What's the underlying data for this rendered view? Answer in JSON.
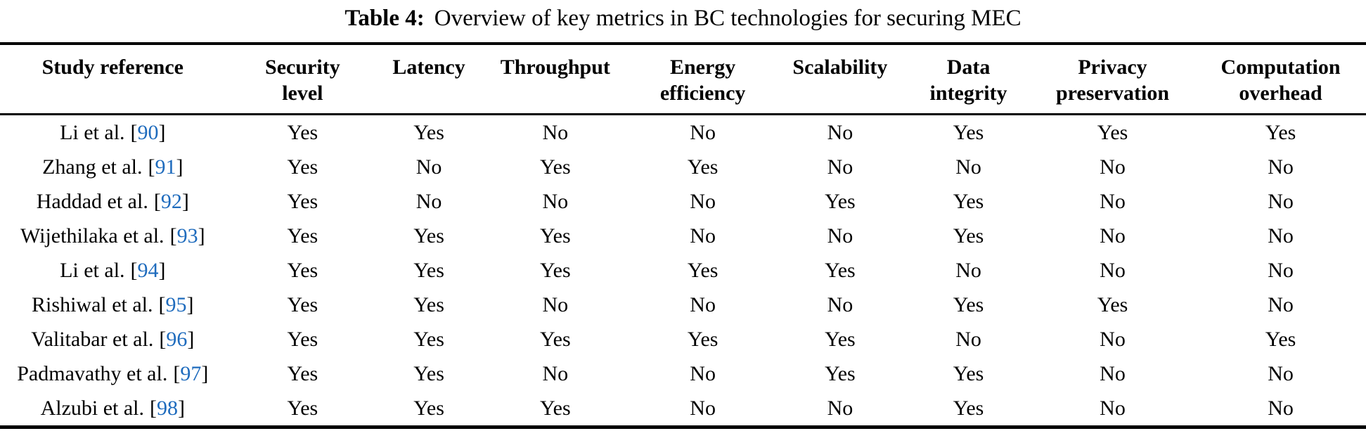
{
  "caption": {
    "label": "Table 4:",
    "text": "Overview of key metrics in BC technologies for securing MEC"
  },
  "table": {
    "citation_brackets": {
      "open": "[",
      "close": "]"
    },
    "columns": [
      {
        "id": "study-reference",
        "lines": [
          "Study reference"
        ]
      },
      {
        "id": "security-level",
        "lines": [
          "Security",
          "level"
        ]
      },
      {
        "id": "latency",
        "lines": [
          "Latency"
        ]
      },
      {
        "id": "throughput",
        "lines": [
          "Throughput"
        ]
      },
      {
        "id": "energy-efficiency",
        "lines": [
          "Energy",
          "efficiency"
        ]
      },
      {
        "id": "scalability",
        "lines": [
          "Scalability"
        ]
      },
      {
        "id": "data-integrity",
        "lines": [
          "Data",
          "integrity"
        ]
      },
      {
        "id": "privacy-preservation",
        "lines": [
          "Privacy",
          "preservation"
        ]
      },
      {
        "id": "computation-overhead",
        "lines": [
          "Computation",
          "overhead"
        ]
      }
    ],
    "rows": [
      {
        "study": "Li et al.",
        "ref": "90",
        "values": [
          "Yes",
          "Yes",
          "No",
          "No",
          "No",
          "Yes",
          "Yes",
          "Yes"
        ]
      },
      {
        "study": "Zhang et al.",
        "ref": "91",
        "values": [
          "Yes",
          "No",
          "Yes",
          "Yes",
          "No",
          "No",
          "No",
          "No"
        ]
      },
      {
        "study": "Haddad et al.",
        "ref": "92",
        "values": [
          "Yes",
          "No",
          "No",
          "No",
          "Yes",
          "Yes",
          "No",
          "No"
        ]
      },
      {
        "study": "Wijethilaka et al.",
        "ref": "93",
        "values": [
          "Yes",
          "Yes",
          "Yes",
          "No",
          "No",
          "Yes",
          "No",
          "No"
        ]
      },
      {
        "study": "Li et al.",
        "ref": "94",
        "values": [
          "Yes",
          "Yes",
          "Yes",
          "Yes",
          "Yes",
          "No",
          "No",
          "No"
        ]
      },
      {
        "study": "Rishiwal et al.",
        "ref": "95",
        "values": [
          "Yes",
          "Yes",
          "No",
          "No",
          "No",
          "Yes",
          "Yes",
          "No"
        ]
      },
      {
        "study": "Valitabar et al.",
        "ref": "96",
        "values": [
          "Yes",
          "Yes",
          "Yes",
          "Yes",
          "Yes",
          "No",
          "No",
          "Yes"
        ]
      },
      {
        "study": "Padmavathy et al.",
        "ref": "97",
        "values": [
          "Yes",
          "Yes",
          "No",
          "No",
          "Yes",
          "Yes",
          "No",
          "No"
        ]
      },
      {
        "study": "Alzubi et al.",
        "ref": "98",
        "values": [
          "Yes",
          "Yes",
          "Yes",
          "No",
          "No",
          "Yes",
          "No",
          "No"
        ]
      }
    ]
  },
  "colors": {
    "citation_link_blue": "#1e6bbd",
    "text_black": "#000000"
  }
}
